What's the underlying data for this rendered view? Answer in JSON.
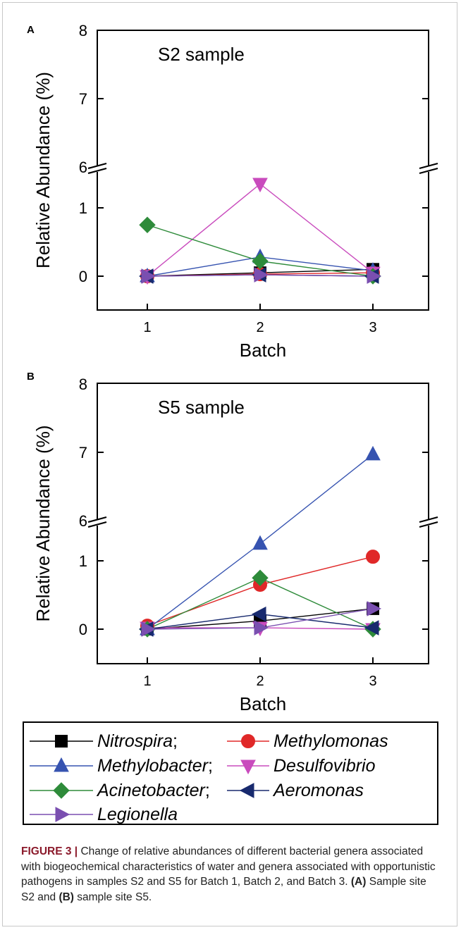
{
  "colors": {
    "Nitrospira": "#000000",
    "Methylomonas": "#e02828",
    "Methylobacter": "#3653b0",
    "Desulfovibrio": "#c94bbd",
    "Acinetobacter": "#2e8b3a",
    "Aeromonas": "#182a6e",
    "Legionella": "#7a4fb0"
  },
  "chart_data": [
    {
      "type": "line",
      "panel_label": "A",
      "title": "S2 sample",
      "xlabel": "Batch",
      "ylabel": "Relative Abundance (%)",
      "x": [
        1,
        2,
        3
      ],
      "xlim": [
        0.5,
        3.5
      ],
      "y_axis_break": {
        "lower_range": [
          -0.5,
          1.5
        ],
        "upper_range": [
          6,
          8
        ],
        "break_marker_at": 6
      },
      "yticks_lower": [
        "0",
        "1"
      ],
      "yticks_upper": [
        "6",
        "7",
        "8"
      ],
      "series": [
        {
          "name": "Nitrospira",
          "marker": "square",
          "values": [
            0.0,
            0.05,
            0.1
          ]
        },
        {
          "name": "Methylomonas",
          "marker": "circle",
          "values": [
            0.0,
            0.03,
            0.05
          ]
        },
        {
          "name": "Methylobacter",
          "marker": "triangle-up",
          "values": [
            0.0,
            0.28,
            0.08
          ]
        },
        {
          "name": "Desulfovibrio",
          "marker": "triangle-down",
          "values": [
            0.0,
            1.35,
            0.05
          ]
        },
        {
          "name": "Acinetobacter",
          "marker": "diamond",
          "values": [
            0.75,
            0.22,
            0.0
          ]
        },
        {
          "name": "Aeromonas",
          "marker": "triangle-left",
          "values": [
            0.0,
            0.02,
            0.0
          ]
        },
        {
          "name": "Legionella",
          "marker": "triangle-right",
          "values": [
            0.0,
            0.02,
            0.0
          ]
        }
      ]
    },
    {
      "type": "line",
      "panel_label": "B",
      "title": "S5 sample",
      "xlabel": "Batch",
      "ylabel": "Relative Abundance (%)",
      "x": [
        1,
        2,
        3
      ],
      "xlim": [
        0.5,
        3.5
      ],
      "y_axis_break": {
        "lower_range": [
          -0.5,
          1.5
        ],
        "upper_range": [
          6,
          8
        ],
        "break_marker_at": 6
      },
      "yticks_lower": [
        "0",
        "1"
      ],
      "yticks_upper": [
        "6",
        "7",
        "8"
      ],
      "series": [
        {
          "name": "Nitrospira",
          "marker": "square",
          "values": [
            0.0,
            0.12,
            0.3
          ]
        },
        {
          "name": "Methylomonas",
          "marker": "circle",
          "values": [
            0.05,
            0.65,
            1.06
          ]
        },
        {
          "name": "Methylobacter",
          "marker": "triangle-up",
          "values": [
            0.0,
            1.25,
            6.97
          ]
        },
        {
          "name": "Desulfovibrio",
          "marker": "triangle-down",
          "values": [
            0.02,
            0.02,
            0.0
          ]
        },
        {
          "name": "Acinetobacter",
          "marker": "diamond",
          "values": [
            0.0,
            0.75,
            0.0
          ]
        },
        {
          "name": "Aeromonas",
          "marker": "triangle-left",
          "values": [
            0.0,
            0.22,
            0.02
          ]
        },
        {
          "name": "Legionella",
          "marker": "triangle-right",
          "values": [
            0.0,
            0.02,
            0.3
          ]
        }
      ]
    }
  ],
  "legend": {
    "rows": [
      [
        {
          "name": "Nitrospira",
          "suffix": ";"
        },
        {
          "name": "Methylomonas",
          "suffix": ""
        }
      ],
      [
        {
          "name": "Methylobacter",
          "suffix": ";"
        },
        {
          "name": "Desulfovibrio",
          "suffix": ""
        }
      ],
      [
        {
          "name": "Acinetobacter",
          "suffix": ";"
        },
        {
          "name": "Aeromonas",
          "suffix": ""
        }
      ],
      [
        {
          "name": "Legionella",
          "suffix": ""
        }
      ]
    ]
  },
  "caption": {
    "figure_label": "FIGURE 3 |",
    "text_1": " Change of relative abundances of different bacterial genera associated with biogeochemical characteristics of water and genera associated with opportunistic pathogens in samples S2 and S5 for Batch 1, Batch 2, and Batch 3. ",
    "panel_a_ref": "(A)",
    "text_2": " Sample site S2 and ",
    "panel_b_ref": "(B)",
    "text_3": " sample site S5."
  }
}
